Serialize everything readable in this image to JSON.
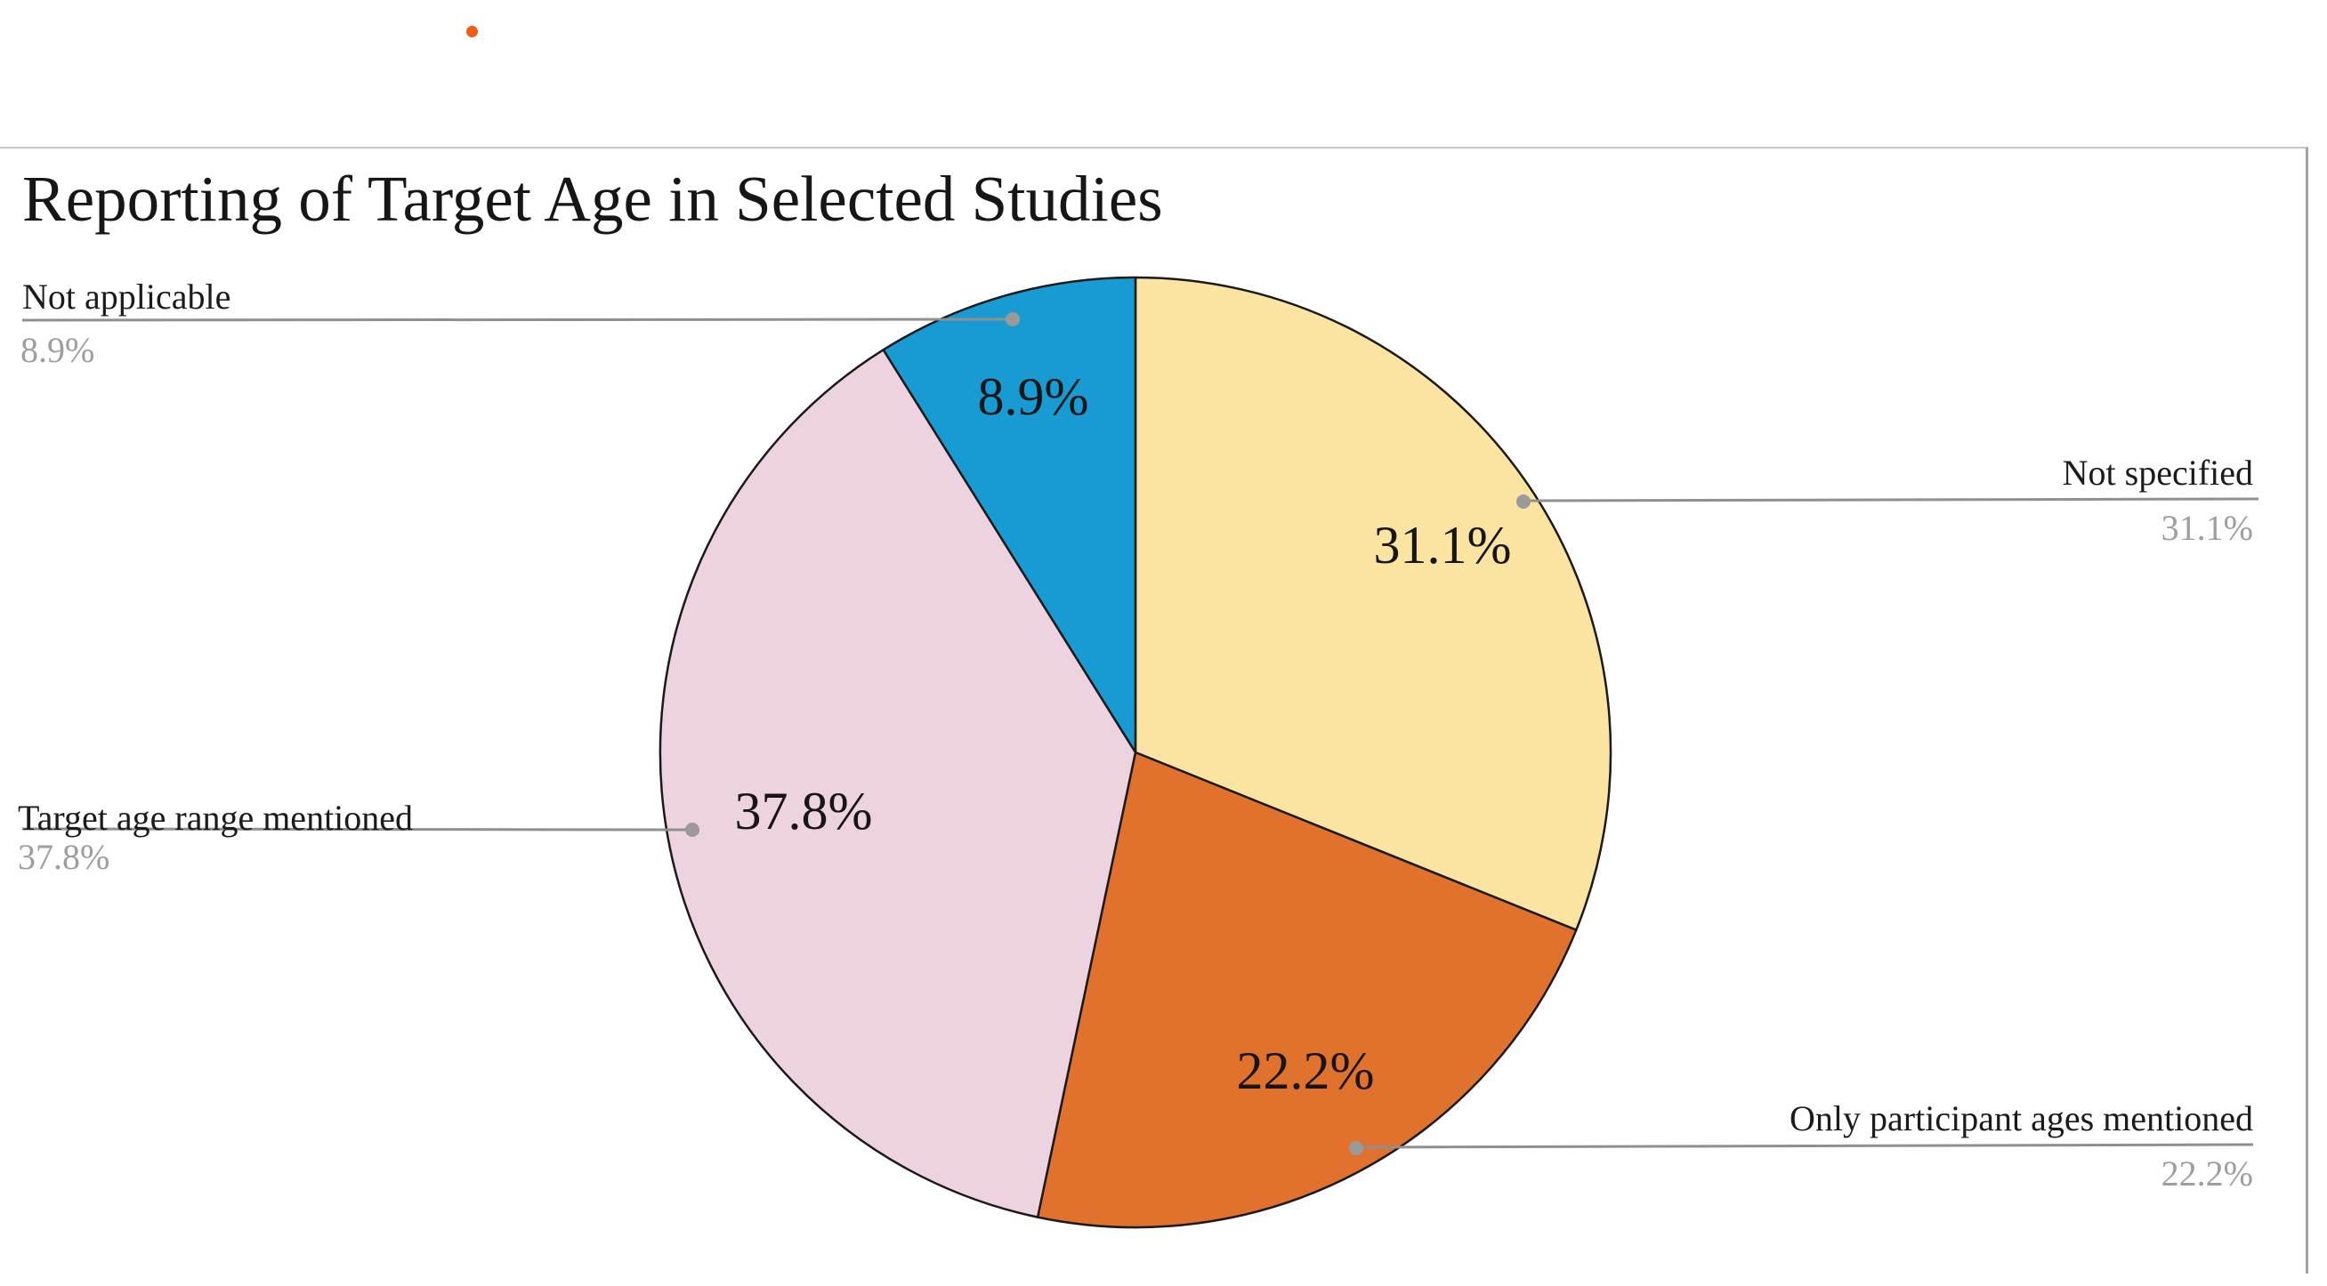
{
  "page": {
    "background_color": "#ffffff",
    "orange_dot_color": "#f25c17"
  },
  "frame": {
    "top_border_color": "#c7c7c7",
    "right_border_color": "#a3a3a3"
  },
  "chart_data": {
    "type": "pie",
    "title": "Reporting of Target Age in Selected Studies",
    "start_angle_deg": 0,
    "direction": "clockwise",
    "grid": false,
    "legend_position": "none (callout labels with leader lines)",
    "outline_color": "#1a1a1a",
    "leader_line_color": "#8f8f8f",
    "leader_dot_color": "#9a9a9a",
    "inside_label_color": "#161616",
    "annotation_value_color": "#9e9e9e",
    "slices": [
      {
        "label": "Not specified",
        "value_pct": 31.1,
        "display_pct": "31.1%",
        "color": "#fbe3a2"
      },
      {
        "label": "Only participant ages mentioned",
        "value_pct": 22.2,
        "display_pct": "22.2%",
        "color": "#e1722e"
      },
      {
        "label": "Target age range mentioned",
        "value_pct": 37.8,
        "display_pct": "37.8%",
        "color": "#edd3e0"
      },
      {
        "label": "Not applicable",
        "value_pct": 8.9,
        "display_pct": "8.9%",
        "color": "#189bd3"
      }
    ]
  }
}
